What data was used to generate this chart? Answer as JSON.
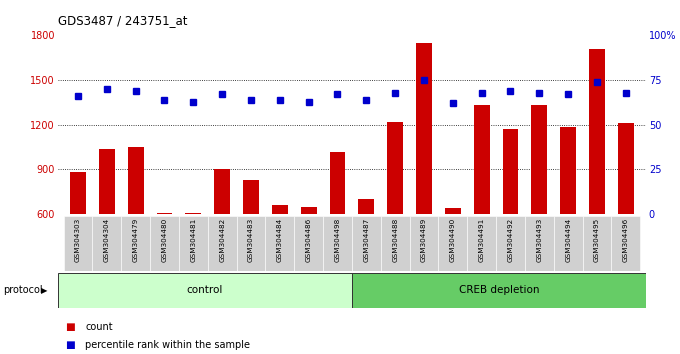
{
  "title": "GDS3487 / 243751_at",
  "samples": [
    "GSM304303",
    "GSM304304",
    "GSM304479",
    "GSM304480",
    "GSM304481",
    "GSM304482",
    "GSM304483",
    "GSM304484",
    "GSM304486",
    "GSM304498",
    "GSM304487",
    "GSM304488",
    "GSM304489",
    "GSM304490",
    "GSM304491",
    "GSM304492",
    "GSM304493",
    "GSM304494",
    "GSM304495",
    "GSM304496"
  ],
  "bar_values": [
    880,
    1040,
    1050,
    605,
    610,
    900,
    830,
    660,
    645,
    1020,
    700,
    1220,
    1750,
    640,
    1330,
    1170,
    1330,
    1185,
    1710,
    1210
  ],
  "dot_values": [
    66,
    70,
    69,
    64,
    63,
    67,
    64,
    64,
    63,
    67,
    64,
    68,
    75,
    62,
    68,
    69,
    68,
    67,
    74,
    68
  ],
  "control_count": 10,
  "creb_count": 10,
  "ylim_left": [
    600,
    1800
  ],
  "ylim_right": [
    0,
    100
  ],
  "yticks_left": [
    600,
    900,
    1200,
    1500,
    1800
  ],
  "yticks_right": [
    0,
    25,
    50,
    75,
    100
  ],
  "bar_color": "#cc0000",
  "dot_color": "#0000cc",
  "control_color": "#ccffcc",
  "creb_color": "#66cc66",
  "plot_bg": "#ffffff",
  "legend_bar_label": "count",
  "legend_dot_label": "percentile rank within the sample",
  "protocol_label": "protocol",
  "control_label": "control",
  "creb_label": "CREB depletion"
}
